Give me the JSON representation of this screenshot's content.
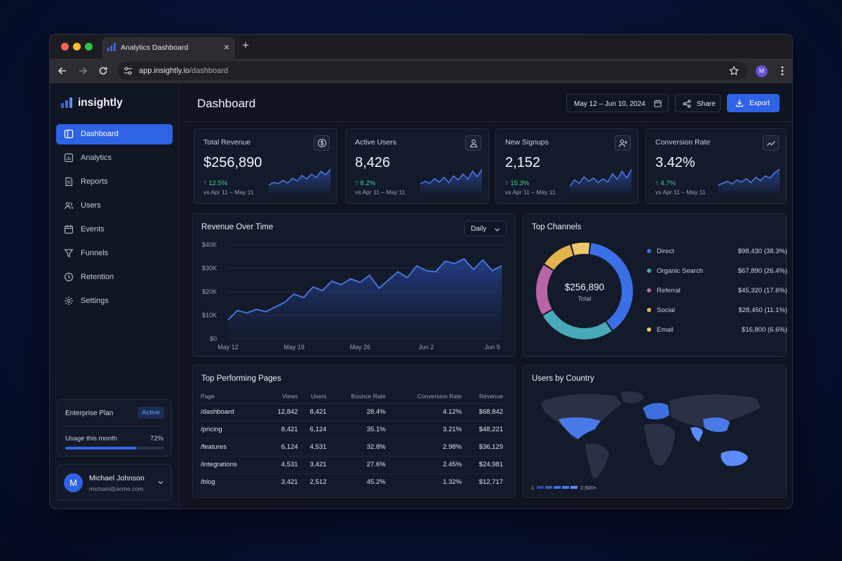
{
  "browser": {
    "tab_title": "Analytics Dashboard",
    "url_host": "app.insightly.io",
    "url_path": "/dashboard",
    "profile_initial": "M"
  },
  "sidebar": {
    "brand": "insightly",
    "items": [
      {
        "label": "Dashboard",
        "icon": "dashboard-icon",
        "active": true
      },
      {
        "label": "Analytics",
        "icon": "analytics-icon",
        "active": false
      },
      {
        "label": "Reports",
        "icon": "reports-icon",
        "active": false
      },
      {
        "label": "Users",
        "icon": "users-icon",
        "active": false
      },
      {
        "label": "Events",
        "icon": "calendar-icon",
        "active": false
      },
      {
        "label": "Funnels",
        "icon": "funnel-icon",
        "active": false
      },
      {
        "label": "Retention",
        "icon": "clock-icon",
        "active": false
      },
      {
        "label": "Settings",
        "icon": "gear-icon",
        "active": false
      }
    ],
    "plan": {
      "name": "Enterprise Plan",
      "badge": "Active",
      "usage_label": "Usage this month",
      "usage_pct": "72%",
      "usage_fraction": 0.72
    },
    "user": {
      "initial": "M",
      "name": "Michael Johnson",
      "email": "michael@acme.com"
    }
  },
  "header": {
    "title": "Dashboard",
    "date_range": "May 12 – Jun 10, 2024",
    "share_label": "Share",
    "export_label": "Export"
  },
  "kpis": [
    {
      "label": "Total Revenue",
      "value": "$256,890",
      "delta": "12.5%",
      "compare": "vs Apr 11 – May 11",
      "icon": "dollar-icon",
      "spark": [
        10,
        14,
        12,
        17,
        13,
        20,
        16,
        24,
        19,
        26,
        21,
        30,
        25,
        33
      ]
    },
    {
      "label": "Active Users",
      "value": "8,426",
      "delta": "8.2%",
      "compare": "vs Apr 11 – May 11",
      "icon": "user-icon",
      "spark": [
        12,
        16,
        13,
        20,
        15,
        22,
        14,
        24,
        18,
        27,
        19,
        31,
        23,
        34
      ]
    },
    {
      "label": "New Signups",
      "value": "2,152",
      "delta": "15.3%",
      "compare": "vs Apr 11 – May 11",
      "icon": "user-plus-icon",
      "spark": [
        9,
        19,
        14,
        24,
        17,
        22,
        15,
        21,
        16,
        29,
        20,
        33,
        22,
        36
      ]
    },
    {
      "label": "Conversion Rate",
      "value": "3.42%",
      "delta": "4.7%",
      "compare": "vs Apr 11 – May 11",
      "icon": "trend-icon",
      "spark": [
        10,
        13,
        16,
        12,
        18,
        15,
        20,
        14,
        22,
        17,
        24,
        21,
        29,
        34
      ]
    }
  ],
  "revenue_chart": {
    "title": "Revenue Over Time",
    "granularity": "Daily",
    "chart_data": {
      "type": "area",
      "x": [
        "May 12",
        "May 13",
        "May 14",
        "May 15",
        "May 16",
        "May 17",
        "May 18",
        "May 19",
        "May 20",
        "May 21",
        "May 22",
        "May 23",
        "May 24",
        "May 25",
        "May 26",
        "May 27",
        "May 28",
        "May 29",
        "May 30",
        "May 31",
        "Jun 1",
        "Jun 2",
        "Jun 3",
        "Jun 4",
        "Jun 5",
        "Jun 6",
        "Jun 7",
        "Jun 8",
        "Jun 9",
        "Jun 10"
      ],
      "y": [
        8000,
        12000,
        11000,
        12500,
        11500,
        13500,
        15500,
        19000,
        17500,
        22000,
        20500,
        24500,
        23000,
        25500,
        24000,
        27000,
        21500,
        25000,
        28500,
        26000,
        31000,
        29000,
        28500,
        33000,
        32000,
        34000,
        29500,
        33500,
        29000,
        31000
      ],
      "xticks": [
        "May 12",
        "May 19",
        "May 26",
        "Jun 2",
        "Jun 9"
      ],
      "yticks": [
        "$40K",
        "$30K",
        "$20K",
        "$10K",
        "$0"
      ],
      "ylim": [
        0,
        40000
      ]
    }
  },
  "channels": {
    "title": "Top Channels",
    "center_value": "$256,890",
    "center_label": "Total",
    "chart_data": {
      "type": "pie",
      "labels": [
        "Direct",
        "Organic Search",
        "Referral",
        "Social",
        "Email"
      ],
      "values": [
        98430,
        67890,
        45320,
        28450,
        16800
      ],
      "display": [
        "$98,430 (38.3%)",
        "$67,890 (26.4%)",
        "$45,320 (17.6%)",
        "$28,450 (11.1%)",
        "$16,800 (6.6%)"
      ],
      "colors": [
        "#3b6fe6",
        "#48a9b9",
        "#b864a6",
        "#e3b34c",
        "#f0c86a"
      ]
    }
  },
  "pages_table": {
    "title": "Top Performing Pages",
    "columns": [
      "Page",
      "Views",
      "Users",
      "Bounce Rate",
      "Conversion Rate",
      "Revenue"
    ],
    "rows": [
      [
        "/dashboard",
        "12,842",
        "8,421",
        "28.4%",
        "4.12%",
        "$68,842"
      ],
      [
        "/pricing",
        "8,421",
        "6,124",
        "35.1%",
        "3.21%",
        "$48,221"
      ],
      [
        "/features",
        "6,124",
        "4,531",
        "32.8%",
        "2.98%",
        "$36,129"
      ],
      [
        "/integrations",
        "4,531",
        "3,421",
        "27.6%",
        "2.45%",
        "$24,981"
      ],
      [
        "/blog",
        "3,421",
        "2,512",
        "45.2%",
        "1.32%",
        "$12,717"
      ]
    ]
  },
  "country_map": {
    "title": "Users by Country",
    "legend_min": "1",
    "legend_max": "2,500+"
  }
}
